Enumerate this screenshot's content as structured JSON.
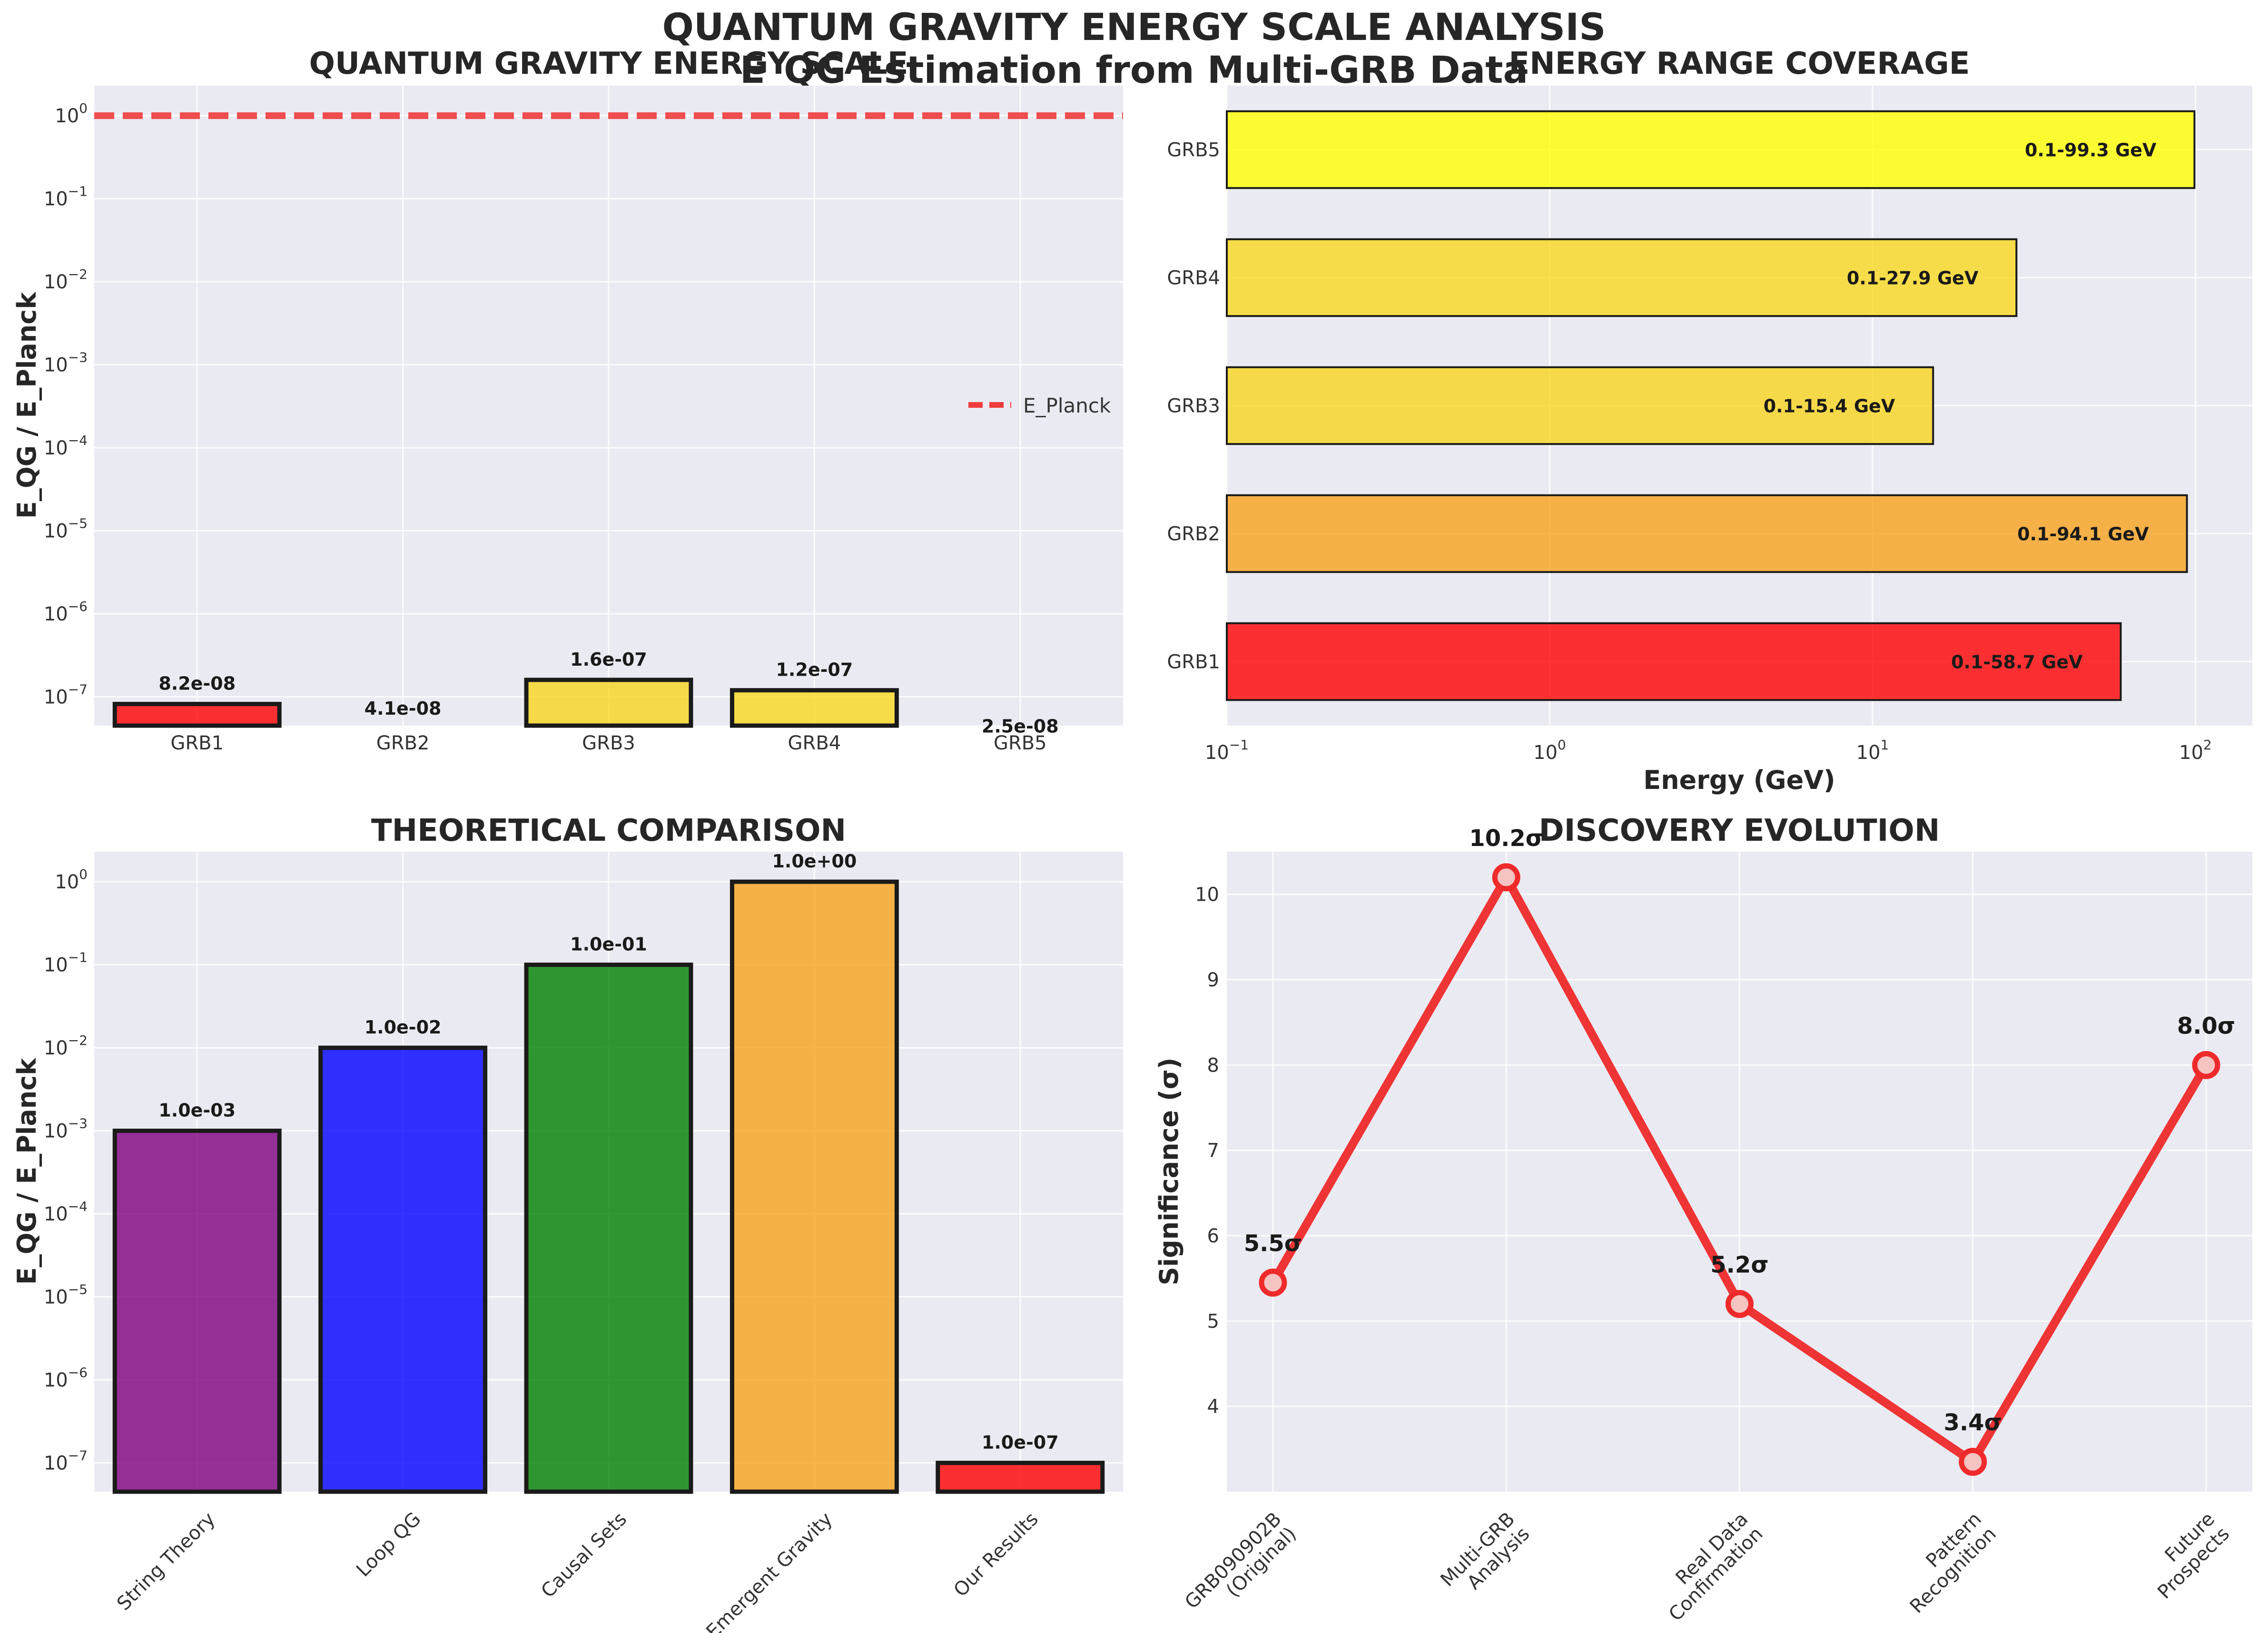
{
  "suptitle_line1": "QUANTUM GRAVITY ENERGY SCALE ANALYSIS",
  "suptitle_line2": "E_QG Estimation from Multi-GRB Data",
  "chart_data": [
    {
      "type": "bar",
      "title": "QUANTUM GRAVITY ENERGY SCALE",
      "ylabel": "E_QG / E_Planck",
      "yscale": "log",
      "ylim": [
        4.5e-08,
        2.3
      ],
      "categories": [
        "GRB1",
        "GRB2",
        "GRB3",
        "GRB4",
        "GRB5"
      ],
      "values": [
        8.2e-08,
        4.1e-08,
        1.6e-07,
        1.2e-07,
        2.5e-08
      ],
      "value_labels": [
        "8.2e-08",
        "4.1e-08",
        "1.6e-07",
        "1.2e-07",
        "2.5e-08"
      ],
      "colors": [
        "#ff0000",
        "#f7a21b",
        "#f9d41d",
        "#f9d81d",
        "#ffff00"
      ],
      "reference_line": {
        "value": 1.0,
        "label": "E_Planck",
        "color": "#ef3b3b"
      },
      "legend": "center-right",
      "ytick_labels": [
        {
          "base": "10",
          "exp": "−7"
        },
        {
          "base": "10",
          "exp": "−6"
        },
        {
          "base": "10",
          "exp": "−5"
        },
        {
          "base": "10",
          "exp": "−4"
        },
        {
          "base": "10",
          "exp": "−3"
        },
        {
          "base": "10",
          "exp": "−2"
        },
        {
          "base": "10",
          "exp": "−1"
        },
        {
          "base": "10",
          "exp": "0"
        }
      ],
      "grid": true
    },
    {
      "type": "bar",
      "orientation": "horizontal",
      "title": "ENERGY RANGE COVERAGE",
      "xlabel": "Energy (GeV)",
      "xscale": "log",
      "xlim": [
        0.1,
        150
      ],
      "categories": [
        "GRB1",
        "GRB2",
        "GRB3",
        "GRB4",
        "GRB5"
      ],
      "ranges": [
        [
          0.1,
          58.7
        ],
        [
          0.1,
          94.1
        ],
        [
          0.1,
          15.4
        ],
        [
          0.1,
          27.9
        ],
        [
          0.1,
          99.3
        ]
      ],
      "value_labels": [
        "0.1-58.7 GeV",
        "0.1-94.1 GeV",
        "0.1-15.4 GeV",
        "0.1-27.9 GeV",
        "0.1-99.3 GeV"
      ],
      "colors": [
        "#ff0000",
        "#f7a21b",
        "#f9d41d",
        "#f9d81d",
        "#ffff00"
      ],
      "xtick_labels": [
        {
          "base": "10",
          "exp": "−1"
        },
        {
          "base": "10",
          "exp": "0"
        },
        {
          "base": "10",
          "exp": "1"
        },
        {
          "base": "10",
          "exp": "2"
        }
      ],
      "grid": true
    },
    {
      "type": "bar",
      "title": "THEORETICAL COMPARISON",
      "ylabel": "E_QG / E_Planck",
      "yscale": "log",
      "ylim": [
        4.5e-08,
        2.3
      ],
      "categories": [
        "String Theory",
        "Loop QG",
        "Causal Sets",
        "Emergent Gravity",
        "Our Results"
      ],
      "values": [
        0.001,
        0.01,
        0.1,
        1.0,
        1e-07
      ],
      "value_labels": [
        "1.0e-03",
        "1.0e-02",
        "1.0e-01",
        "1.0e+00",
        "1.0e-07"
      ],
      "colors": [
        "#800080",
        "#0000ff",
        "#008000",
        "#f7a21b",
        "#ff0000"
      ],
      "ytick_labels": [
        {
          "base": "10",
          "exp": "−7"
        },
        {
          "base": "10",
          "exp": "−6"
        },
        {
          "base": "10",
          "exp": "−5"
        },
        {
          "base": "10",
          "exp": "−4"
        },
        {
          "base": "10",
          "exp": "−3"
        },
        {
          "base": "10",
          "exp": "−2"
        },
        {
          "base": "10",
          "exp": "−1"
        },
        {
          "base": "10",
          "exp": "0"
        }
      ],
      "grid": true
    },
    {
      "type": "line",
      "title": "DISCOVERY EVOLUTION",
      "ylabel": "Significance (σ)",
      "ylim": [
        3.0,
        10.5
      ],
      "categories": [
        "GRB090902B\n(Original)",
        "Multi-GRB\nAnalysis",
        "Real Data\nConfirmation",
        "Pattern\nRecognition",
        "Future\nProspects"
      ],
      "values": [
        5.45,
        10.2,
        5.2,
        3.35,
        8.0
      ],
      "value_labels": [
        "5.5σ",
        "10.2σ",
        "5.2σ",
        "3.4σ",
        "8.0σ"
      ],
      "yticks": [
        4,
        5,
        6,
        7,
        8,
        9,
        10
      ],
      "color": "#ef2a2a",
      "grid": true
    }
  ]
}
